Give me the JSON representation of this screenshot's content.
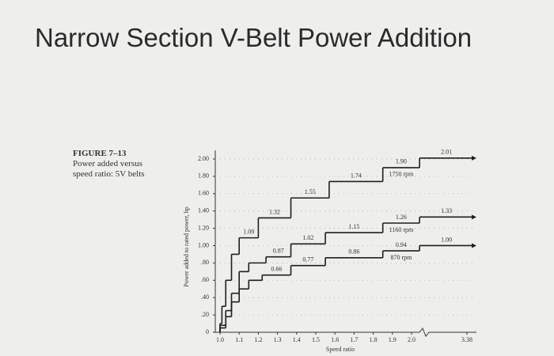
{
  "slide_title": "Narrow Section V-Belt Power Addition",
  "caption": {
    "figure": "FIGURE 7–13",
    "lines": [
      "Power added versus",
      "speed ratio: 5V belts"
    ]
  },
  "chart_data": {
    "type": "step",
    "ylabel": "Power added to rated power, hp",
    "xlabel": "Speed ratio",
    "ylim": [
      0,
      2.1
    ],
    "yticks": [
      0,
      {
        "value": 0.2,
        "label": ".20"
      },
      {
        "value": 0.4,
        "label": ".40"
      },
      {
        "value": 0.6,
        "label": ".60"
      },
      {
        "value": 0.8,
        "label": ".80"
      },
      {
        "value": 1,
        "label": "1.00"
      },
      {
        "value": 1.2,
        "label": "1.20"
      },
      {
        "value": 1.4,
        "label": "1.40"
      },
      {
        "value": 1.6,
        "label": "1.60"
      },
      {
        "value": 1.8,
        "label": "1.80"
      },
      {
        "value": 2,
        "label": "2.00"
      }
    ],
    "xlim": [
      1.0,
      3.38
    ],
    "axis_break": [
      2.0,
      3.38
    ],
    "xticks": [
      {
        "value": 1,
        "label": "1.0"
      },
      1.1,
      1.2,
      1.3,
      1.4,
      1.5,
      1.6,
      1.7,
      1.8,
      1.9,
      {
        "value": 2,
        "label": "2.0"
      },
      3.38
    ],
    "grid": true,
    "series": [
      {
        "name": "1750 rpm",
        "color": "#1e1e1e",
        "x": [
          1.0,
          1.01,
          1.03,
          1.06,
          1.1,
          1.2,
          1.37,
          1.57,
          1.85,
          2.2
        ],
        "values": [
          0.1,
          0.3,
          0.6,
          0.9,
          1.09,
          1.32,
          1.55,
          1.74,
          1.9,
          2.01
        ],
        "value_labels": [
          null,
          null,
          null,
          null,
          "1.09",
          "1.32",
          "1.55",
          "1.74",
          "1.90",
          "2.01"
        ]
      },
      {
        "name": "1160 rpm",
        "color": "#1e1e1e",
        "x": [
          1.0,
          1.03,
          1.06,
          1.1,
          1.15,
          1.24,
          1.37,
          1.55,
          1.85,
          2.2
        ],
        "values": [
          0.08,
          0.25,
          0.45,
          0.7,
          0.8,
          0.87,
          1.02,
          1.15,
          1.26,
          1.33
        ],
        "value_labels": [
          null,
          null,
          null,
          null,
          null,
          "0.87",
          "1.02",
          "1.15",
          "1.26",
          "1.33"
        ]
      },
      {
        "name": "870 rpm",
        "color": "#1e1e1e",
        "x": [
          1.0,
          1.03,
          1.06,
          1.1,
          1.15,
          1.22,
          1.37,
          1.55,
          1.85,
          2.2
        ],
        "values": [
          0.05,
          0.18,
          0.35,
          0.5,
          0.6,
          0.66,
          0.77,
          0.86,
          0.94,
          1.0
        ],
        "value_labels": [
          null,
          null,
          null,
          null,
          null,
          "0.66",
          "0.77",
          "0.86",
          "0.94",
          "1.00"
        ]
      }
    ]
  }
}
